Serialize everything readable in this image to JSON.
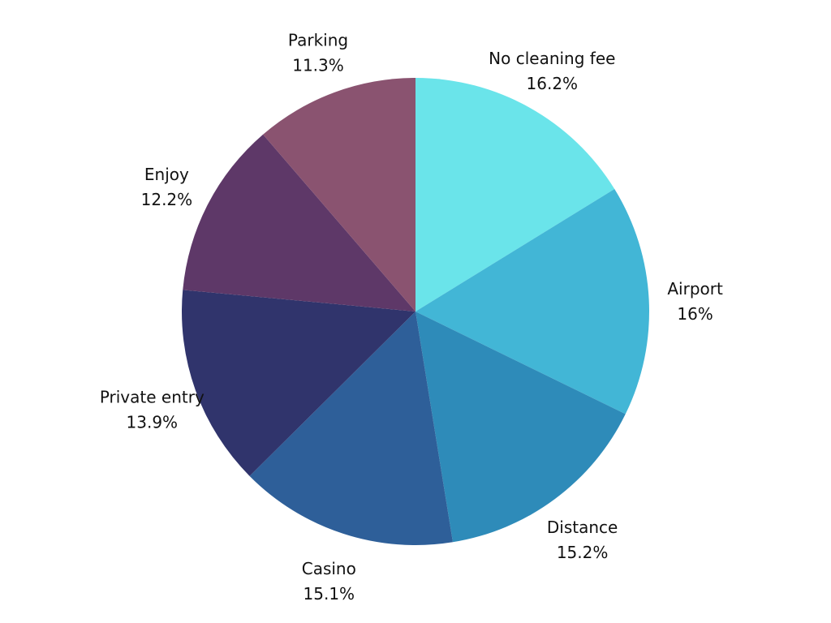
{
  "chart_data": {
    "type": "pie",
    "slices": [
      {
        "label": "No cleaning fee",
        "value": 16.2,
        "display": "16.2%",
        "color": "#6ae4ea"
      },
      {
        "label": "Airport",
        "value": 16.0,
        "display": "16%",
        "color": "#42b6d6"
      },
      {
        "label": "Distance",
        "value": 15.2,
        "display": "15.2%",
        "color": "#2e8bb9"
      },
      {
        "label": "Casino",
        "value": 15.1,
        "display": "15.1%",
        "color": "#2e5f99"
      },
      {
        "label": "Private entry",
        "value": 13.9,
        "display": "13.9%",
        "color": "#30346c"
      },
      {
        "label": "Enjoy",
        "value": 12.2,
        "display": "12.2%",
        "color": "#5e3868"
      },
      {
        "label": "Parking",
        "value": 11.3,
        "display": "11.3%",
        "color": "#8a5370"
      }
    ],
    "start": "12 o'clock",
    "direction": "clockwise",
    "legend": "none",
    "labels": "outside"
  }
}
